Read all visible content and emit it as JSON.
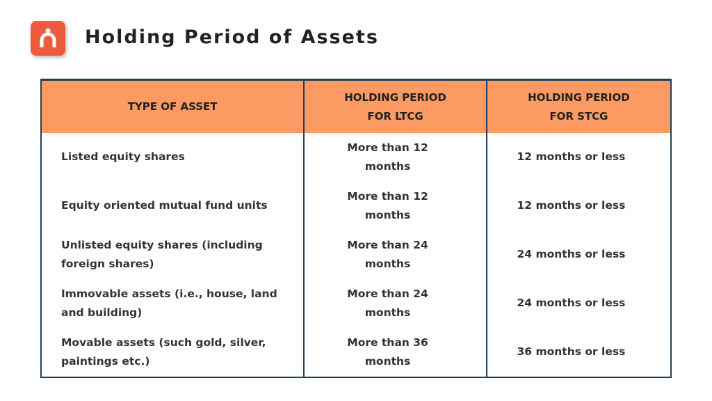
{
  "header": {
    "title": "Holding Period of Assets"
  },
  "table": {
    "columns": [
      "TYPE OF ASSET",
      "HOLDING PERIOD FOR LTCG",
      "HOLDING PERIOD FOR STCG"
    ],
    "rows": [
      [
        "Listed equity shares",
        "More than 12 months",
        "12 months or less"
      ],
      [
        "Equity oriented mutual fund units",
        "More than 12 months",
        "12 months or less"
      ],
      [
        "Unlisted equity shares (including foreign shares)",
        "More than 24 months",
        "24 months or less"
      ],
      [
        "Immovable assets (i.e., house, land and building)",
        "More than 24 months",
        "24 months or less"
      ],
      [
        "Movable assets (such gold, silver, paintings etc.)",
        "More than 36 months",
        "36 months or less"
      ]
    ]
  }
}
